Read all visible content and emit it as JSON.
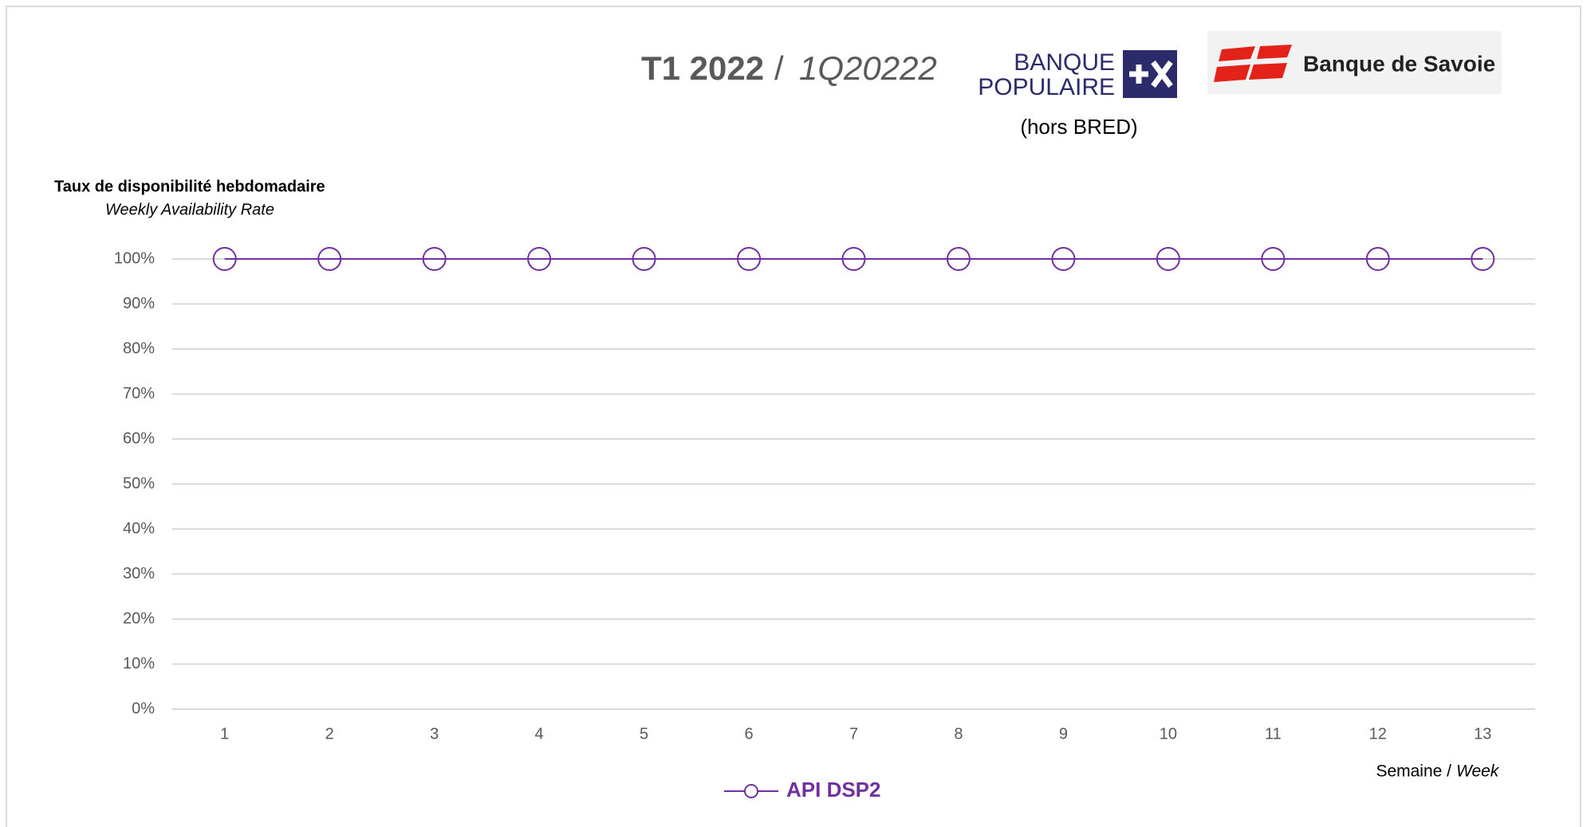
{
  "header": {
    "title_bold": "T1 2022",
    "title_separator": "/",
    "title_italic": "1Q20222",
    "logo1_line1": "BANQUE",
    "logo1_line2": "POPULAIRE",
    "logo2_text": "Banque de Savoie",
    "note": "(hors BRED)"
  },
  "chart_data": {
    "type": "line",
    "y_title": "Taux de disponibilité hebdomadaire",
    "y_subtitle": "Weekly Availability Rate",
    "x_label_main": "Semaine /",
    "x_label_italic": "Week",
    "categories": [
      "1",
      "2",
      "3",
      "4",
      "5",
      "6",
      "7",
      "8",
      "9",
      "10",
      "11",
      "12",
      "13"
    ],
    "series": [
      {
        "name": "API DSP2",
        "color": "#7030a0",
        "values": [
          100,
          100,
          100,
          100,
          100,
          100,
          100,
          100,
          100,
          100,
          100,
          100,
          100
        ]
      }
    ],
    "ylim": [
      0,
      100
    ],
    "yticks": [
      {
        "value": 0,
        "label": "0%"
      },
      {
        "value": 10,
        "label": "10%"
      },
      {
        "value": 20,
        "label": "20%"
      },
      {
        "value": 30,
        "label": "30%"
      },
      {
        "value": 40,
        "label": "40%"
      },
      {
        "value": 50,
        "label": "50%"
      },
      {
        "value": 60,
        "label": "60%"
      },
      {
        "value": 70,
        "label": "70%"
      },
      {
        "value": 80,
        "label": "80%"
      },
      {
        "value": 90,
        "label": "90%"
      },
      {
        "value": 100,
        "label": "100%"
      }
    ],
    "grid": true
  }
}
